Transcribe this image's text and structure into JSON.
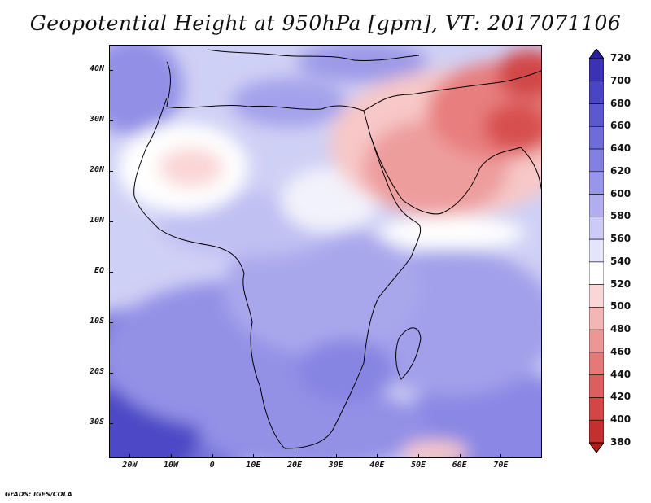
{
  "title": "Geopotential Height at 950hPa [gpm], VT: 2017071106",
  "credit": "GrADS: IGES/COLA",
  "map": {
    "projection": "latlon",
    "lon_range": [
      -25,
      80
    ],
    "lat_range": [
      -37,
      45
    ],
    "lat_ticks": [
      {
        "lat": 40,
        "label": "40N"
      },
      {
        "lat": 30,
        "label": "30N"
      },
      {
        "lat": 20,
        "label": "20N"
      },
      {
        "lat": 10,
        "label": "10N"
      },
      {
        "lat": 0,
        "label": "EQ"
      },
      {
        "lat": -10,
        "label": "10S"
      },
      {
        "lat": -20,
        "label": "20S"
      },
      {
        "lat": -30,
        "label": "30S"
      }
    ],
    "lon_ticks": [
      {
        "lon": -20,
        "label": "20W"
      },
      {
        "lon": -10,
        "label": "10W"
      },
      {
        "lon": 0,
        "label": "0"
      },
      {
        "lon": 10,
        "label": "10E"
      },
      {
        "lon": 20,
        "label": "20E"
      },
      {
        "lon": 30,
        "label": "30E"
      },
      {
        "lon": 40,
        "label": "40E"
      },
      {
        "lon": 50,
        "label": "50E"
      },
      {
        "lon": 60,
        "label": "60E"
      },
      {
        "lon": 70,
        "label": "70E"
      }
    ]
  },
  "colorbar": {
    "labels": [
      "720",
      "700",
      "680",
      "660",
      "640",
      "620",
      "600",
      "580",
      "560",
      "540",
      "520",
      "500",
      "480",
      "460",
      "440",
      "420",
      "400",
      "380"
    ],
    "colors": [
      "#2a1fa0",
      "#3a32b4",
      "#4a45c4",
      "#5c59d0",
      "#6e6cda",
      "#8280e2",
      "#9896ea",
      "#b0aef0",
      "#cbcbf6",
      "#e4e4fa",
      "#ffffff",
      "#fad6d6",
      "#f4b5b5",
      "#ee9595",
      "#e67878",
      "#dd5e5e",
      "#d24646",
      "#c33030",
      "#b01e1e"
    ],
    "gradient_colors": [
      "#b01e1e",
      "#c33030",
      "#d24646",
      "#dd5e5e",
      "#e67878",
      "#ee9595",
      "#f4b5b5",
      "#fad6d6",
      "#ffffff",
      "#e4e4fa",
      "#cbcbf6",
      "#b0aef0",
      "#9896ea",
      "#8280e2",
      "#6e6cda",
      "#5c59d0",
      "#4a45c4",
      "#3a32b4",
      "#2a1fa0"
    ]
  }
}
